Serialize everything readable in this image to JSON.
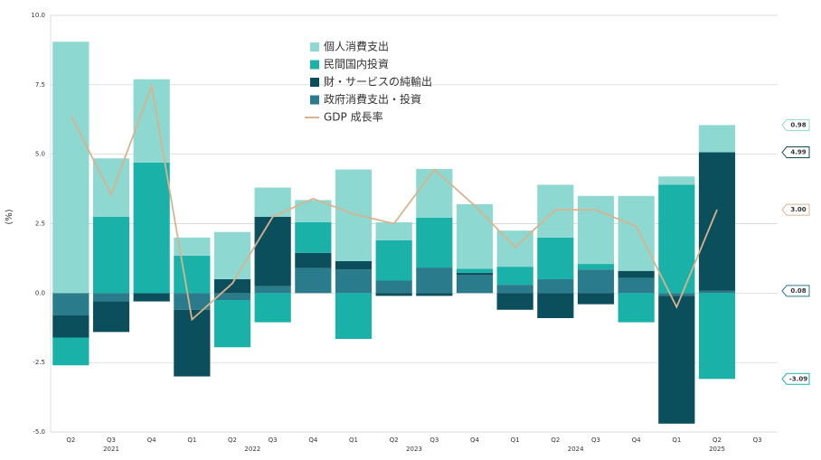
{
  "chart_data": {
    "type": "bar",
    "y_label": "(%)",
    "groups": [
      {
        "label": "2021",
        "categories": [
          "Q2",
          "Q3",
          "Q4"
        ]
      },
      {
        "label": "2022",
        "categories": [
          "Q1",
          "Q2",
          "Q3",
          "Q4"
        ]
      },
      {
        "label": "2023",
        "categories": [
          "Q1",
          "Q2",
          "Q3",
          "Q4"
        ]
      },
      {
        "label": "2024",
        "categories": [
          "Q1",
          "Q2",
          "Q3",
          "Q4"
        ]
      },
      {
        "label": "2025",
        "categories": [
          "Q1",
          "Q2",
          "Q3"
        ]
      }
    ],
    "ylim": [
      -5,
      10
    ],
    "yticks": [
      {
        "value": -5,
        "label": "-5.0"
      },
      -2.5,
      {
        "value": 0,
        "label": "0.0"
      },
      2.5,
      {
        "value": 5,
        "label": "5.0"
      },
      7.5,
      {
        "value": 10,
        "label": "10.0"
      }
    ],
    "grid": true,
    "legend": "upper center",
    "series": [
      {
        "name": "個人消費支出",
        "type": "bar",
        "color": "#8dd8d0",
        "values": [
          9.05,
          2.1,
          3.0,
          0.65,
          1.7,
          1.05,
          0.8,
          3.3,
          0.65,
          1.75,
          2.32,
          1.3,
          1.9,
          2.45,
          2.7,
          0.3,
          0.98,
          null
        ],
        "value_labels": [
          null,
          null,
          null,
          null,
          null,
          null,
          null,
          null,
          null,
          null,
          null,
          null,
          null,
          null,
          null,
          null,
          "0.98",
          null
        ]
      },
      {
        "name": "民間国内投資",
        "type": "bar",
        "color": "#1ab2a8",
        "values": [
          -1.0,
          2.75,
          4.7,
          1.35,
          -1.7,
          -1.05,
          1.1,
          -1.65,
          1.45,
          1.8,
          0.15,
          0.65,
          1.5,
          0.2,
          -1.05,
          3.9,
          -3.09,
          null
        ],
        "value_labels": [
          null,
          null,
          null,
          null,
          null,
          null,
          null,
          null,
          null,
          null,
          null,
          null,
          null,
          null,
          null,
          null,
          "-3.09",
          null
        ]
      },
      {
        "name": "財・サービスの純輸出",
        "type": "bar",
        "color": "#0b4f5c",
        "values": [
          -0.8,
          -1.1,
          -0.3,
          -2.4,
          0.5,
          2.5,
          0.55,
          0.3,
          -0.1,
          -0.1,
          0.08,
          -0.6,
          -0.9,
          -0.4,
          0.25,
          -4.6,
          4.99,
          null
        ],
        "value_labels": [
          null,
          null,
          null,
          null,
          null,
          null,
          null,
          null,
          null,
          null,
          null,
          null,
          null,
          null,
          null,
          null,
          "4.99",
          null
        ]
      },
      {
        "name": "政府消費支出・投資",
        "type": "bar",
        "color": "#2a7b8c",
        "values": [
          -0.8,
          -0.3,
          0,
          -0.6,
          -0.25,
          0.25,
          0.9,
          0.85,
          0.45,
          0.92,
          0.65,
          0.3,
          0.5,
          0.85,
          0.55,
          -0.1,
          0.08,
          null
        ],
        "value_labels": [
          null,
          null,
          null,
          null,
          null,
          null,
          null,
          null,
          null,
          null,
          null,
          null,
          null,
          null,
          null,
          null,
          "0.08",
          null
        ]
      },
      {
        "name": "GDP 成長率",
        "type": "line",
        "color": "#d8b38e",
        "values": [
          6.4,
          3.55,
          7.45,
          -0.95,
          0.35,
          2.75,
          3.4,
          2.85,
          2.5,
          4.45,
          3.15,
          1.65,
          3.0,
          3.0,
          2.4,
          -0.5,
          3.0,
          null
        ],
        "value_labels": [
          null,
          null,
          null,
          null,
          null,
          null,
          null,
          null,
          null,
          null,
          null,
          null,
          null,
          null,
          null,
          null,
          "3.00",
          null
        ]
      }
    ]
  }
}
